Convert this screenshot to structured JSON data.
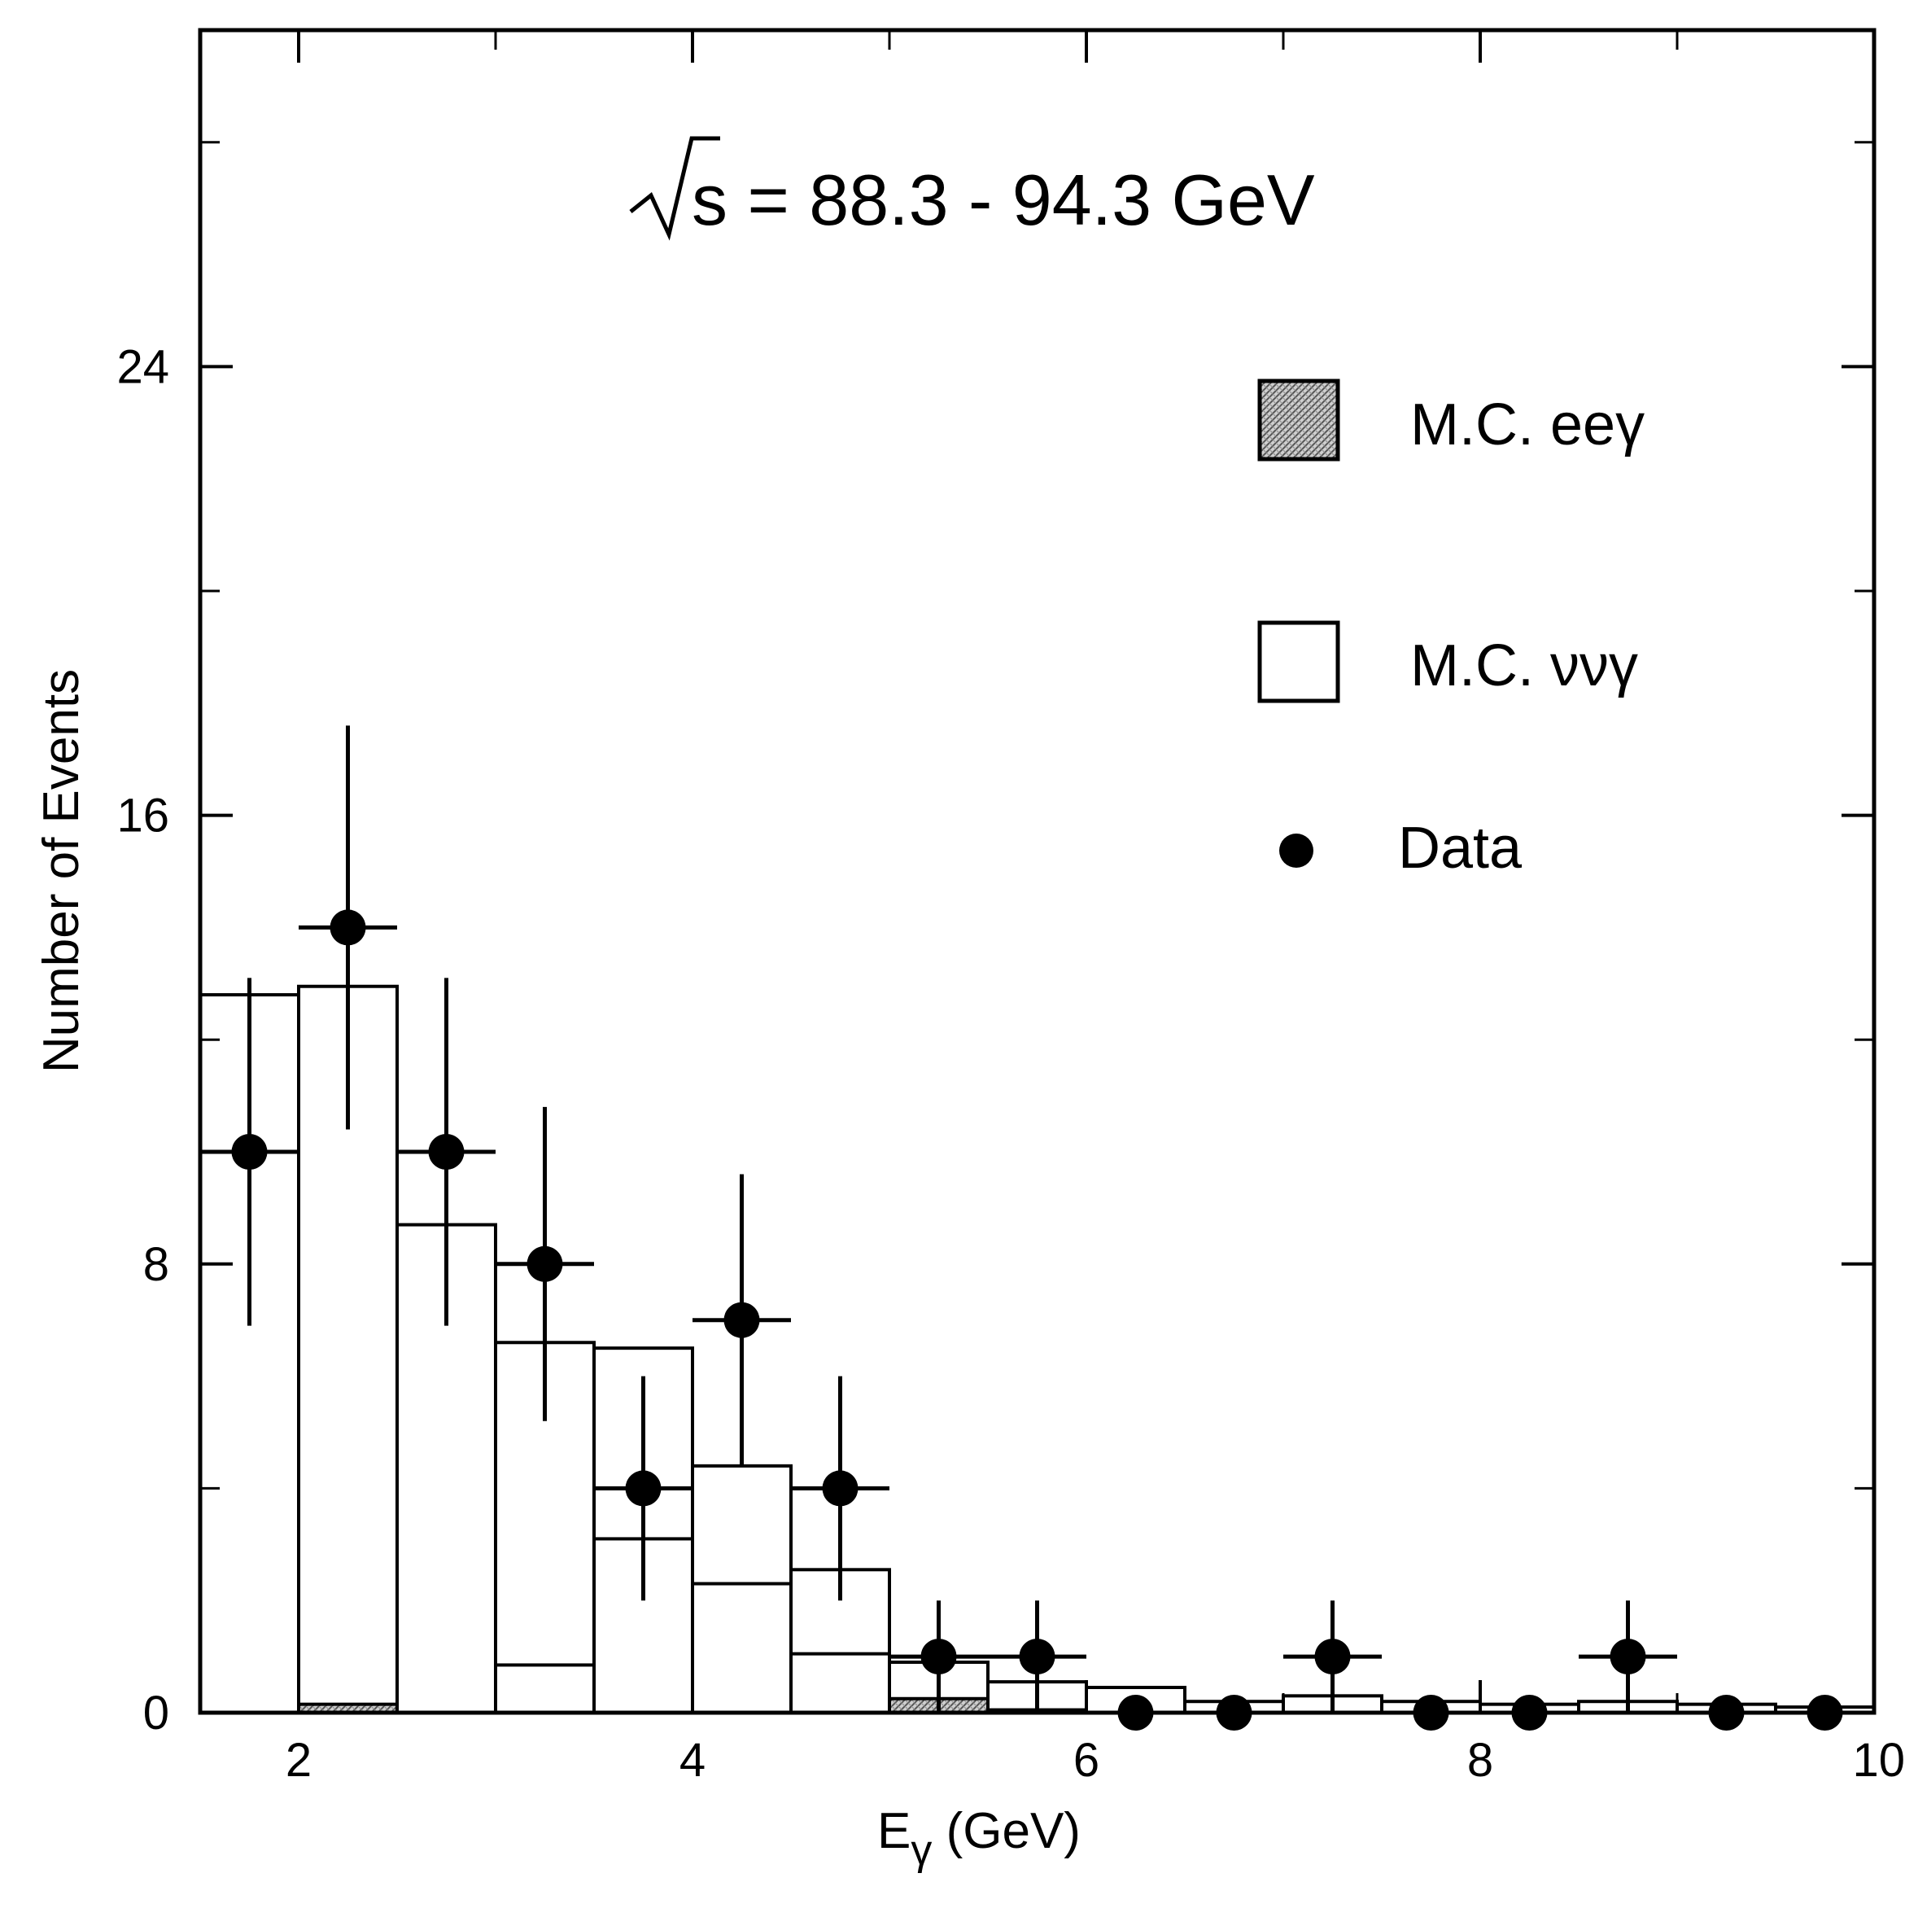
{
  "chart_data": {
    "type": "bar",
    "title": "",
    "annotation": {
      "prefix": "s = 88.3 - 94.3 GeV"
    },
    "xlabel": {
      "main": "E",
      "sub": "γ",
      "unit": " (GeV)"
    },
    "ylabel": "Number of Events",
    "xlim": [
      1.5,
      10
    ],
    "ylim": [
      0,
      30
    ],
    "x_ticks": [
      2,
      4,
      6,
      8,
      10
    ],
    "x_tick_labels": [
      "2",
      "4",
      "6",
      "8",
      "10"
    ],
    "y_ticks": [
      0,
      8,
      16,
      24
    ],
    "y_tick_labels": [
      "0",
      "8",
      "16",
      "24"
    ],
    "y_minor_ticks": [
      4,
      12,
      20,
      28
    ],
    "x_minor_ticks": [
      3,
      5,
      7,
      9
    ],
    "bin_edges": [
      1.5,
      2.0,
      2.5,
      3.0,
      3.5,
      4.0,
      4.5,
      5.0,
      5.5,
      6.0,
      6.5,
      7.0,
      7.5,
      8.0,
      8.5,
      9.0,
      9.5,
      10.0
    ],
    "series": [
      {
        "name": "M.C. eeγ",
        "kind": "stacked-hist-bottom",
        "values": [
          0.0,
          0.15,
          0.0,
          0.85,
          3.1,
          2.3,
          1.05,
          0.25,
          0.05,
          0.0,
          0.0,
          0.0,
          0.0,
          0.0,
          0.0,
          0.0,
          0.0
        ]
      },
      {
        "name": "M.C. ννγ",
        "kind": "stacked-hist-top",
        "totals": [
          12.8,
          12.95,
          8.7,
          6.6,
          6.5,
          4.4,
          2.55,
          0.9,
          0.55,
          0.45,
          0.2,
          0.3,
          0.2,
          0.15,
          0.2,
          0.15,
          0.1
        ]
      },
      {
        "name": "Data",
        "kind": "points",
        "x": [
          1.75,
          2.25,
          2.75,
          3.25,
          3.75,
          4.25,
          4.75,
          5.25,
          5.75,
          6.25,
          6.75,
          7.25,
          7.75,
          8.25,
          8.75,
          9.25,
          9.75
        ],
        "y": [
          10,
          14,
          10,
          8,
          4,
          7,
          4,
          1,
          1,
          0,
          0,
          1,
          0,
          0,
          1,
          0,
          0
        ],
        "yerr": [
          3.1,
          3.6,
          3.1,
          2.8,
          2.0,
          2.6,
          2.0,
          1.0,
          1.0,
          0,
          0,
          1.0,
          0,
          0,
          1.0,
          0,
          0
        ]
      }
    ],
    "legend": {
      "placement": "upper-right",
      "items": [
        {
          "label": "M.C.  eeγ",
          "symbol": "hatched-square"
        },
        {
          "label": "M.C.  ννγ",
          "symbol": "open-square"
        },
        {
          "label": "Data",
          "symbol": "filled-circle"
        }
      ]
    }
  }
}
